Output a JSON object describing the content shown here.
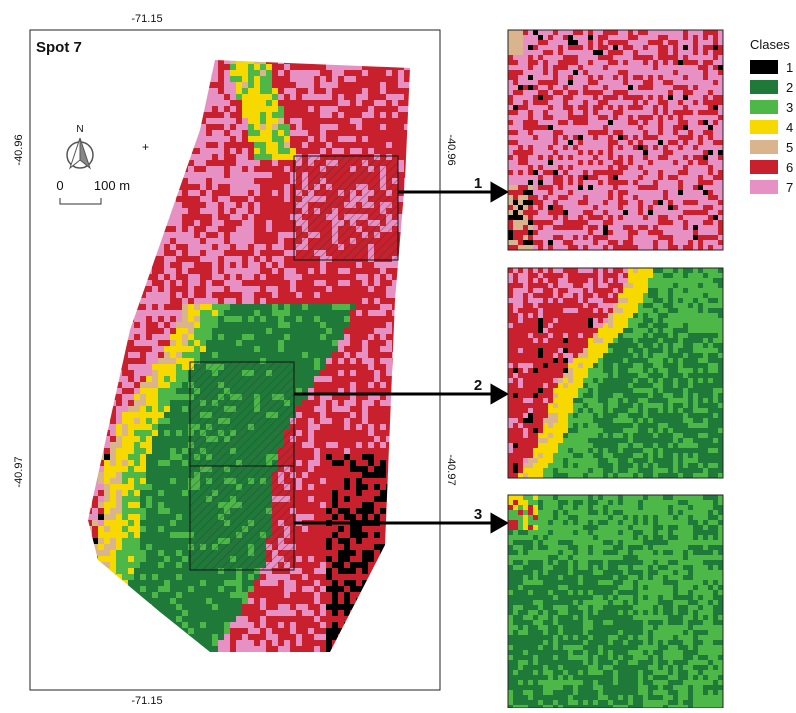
{
  "map": {
    "title": "Spot 7",
    "top_label": "-71.15",
    "bottom_label": "-71.15",
    "left_labels": [
      "-40.96",
      "-40.97"
    ],
    "right_labels": [
      "-40.96",
      "-40.97"
    ],
    "north": "N",
    "scale": {
      "start": "0",
      "end": "100 m"
    }
  },
  "insets": [
    {
      "label": "1"
    },
    {
      "label": "2"
    },
    {
      "label": "3"
    }
  ],
  "legend": {
    "title": "Clases",
    "items": [
      {
        "label": "1",
        "color": "#000000"
      },
      {
        "label": "2",
        "color": "#1f7a3a"
      },
      {
        "label": "3",
        "color": "#4db848"
      },
      {
        "label": "4",
        "color": "#f7d900"
      },
      {
        "label": "5",
        "color": "#d9b48c"
      },
      {
        "label": "6",
        "color": "#c8202c"
      },
      {
        "label": "7",
        "color": "#e690c4"
      }
    ]
  }
}
